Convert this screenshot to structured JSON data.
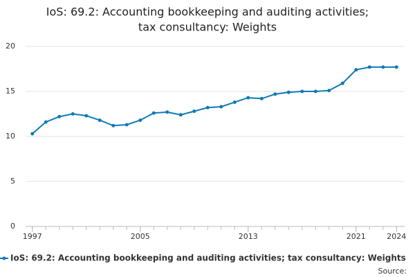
{
  "chart_data": {
    "type": "line",
    "title": [
      "IoS: 69.2: Accounting bookkeeping and auditing activities;",
      "tax consultancy: Weights"
    ],
    "x": [
      1997,
      1998,
      1999,
      2000,
      2001,
      2002,
      2003,
      2004,
      2005,
      2006,
      2007,
      2008,
      2009,
      2010,
      2011,
      2012,
      2013,
      2014,
      2015,
      2016,
      2017,
      2018,
      2019,
      2020,
      2021,
      2022,
      2023,
      2024
    ],
    "series": [
      {
        "name": "IoS: 69.2: Accounting bookkeeping and auditing activities; tax consultancy: Weights",
        "color": "#0f7ab4",
        "values": [
          10.3,
          11.6,
          12.2,
          12.5,
          12.3,
          11.8,
          11.2,
          11.3,
          11.8,
          12.6,
          12.7,
          12.4,
          12.8,
          13.2,
          13.3,
          13.8,
          14.3,
          14.2,
          14.7,
          14.9,
          15.0,
          15.0,
          15.1,
          15.9,
          17.4,
          17.7,
          17.7,
          17.7
        ]
      }
    ],
    "xlim": [
      1996.5,
      2024.6
    ],
    "xticks": [
      1997,
      2005,
      2013,
      2021,
      2024
    ],
    "ylim": [
      0,
      20
    ],
    "yticks": [
      0,
      5,
      10,
      15,
      20
    ],
    "grid": true,
    "source": "Source:"
  }
}
